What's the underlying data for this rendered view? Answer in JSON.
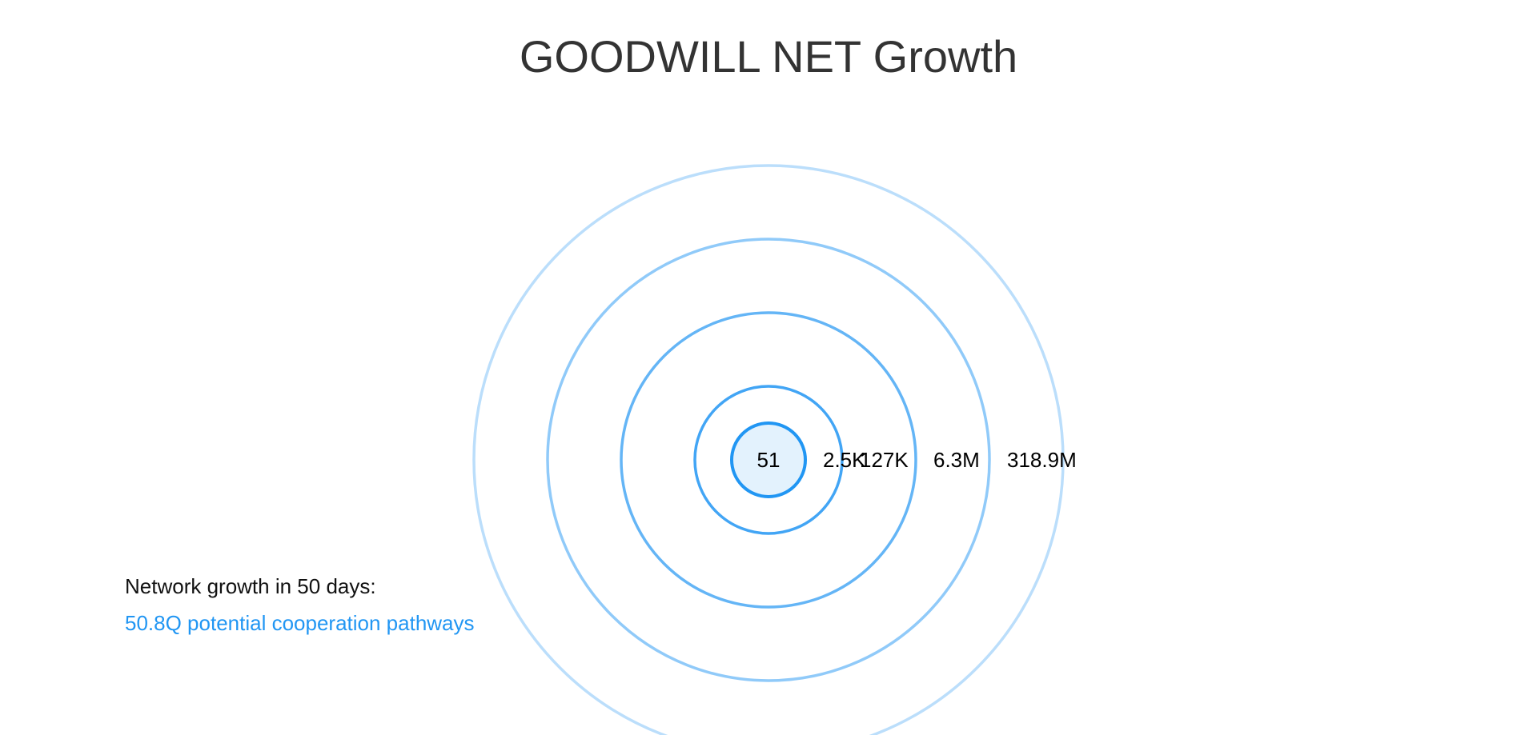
{
  "title": "GOODWILL NET Growth",
  "rings": [
    {
      "label": "51",
      "color": "#2196f3",
      "fill": "#e3f2fd"
    },
    {
      "label": "2.5K",
      "color": "#42a5f5"
    },
    {
      "label": "127K",
      "color": "#64b5f6"
    },
    {
      "label": "6.3M",
      "color": "#90caf9"
    },
    {
      "label": "318.9M",
      "color": "#bbdefb"
    }
  ],
  "note": {
    "caption": "Network growth in 50 days:",
    "value": "50.8Q potential cooperation pathways"
  }
}
